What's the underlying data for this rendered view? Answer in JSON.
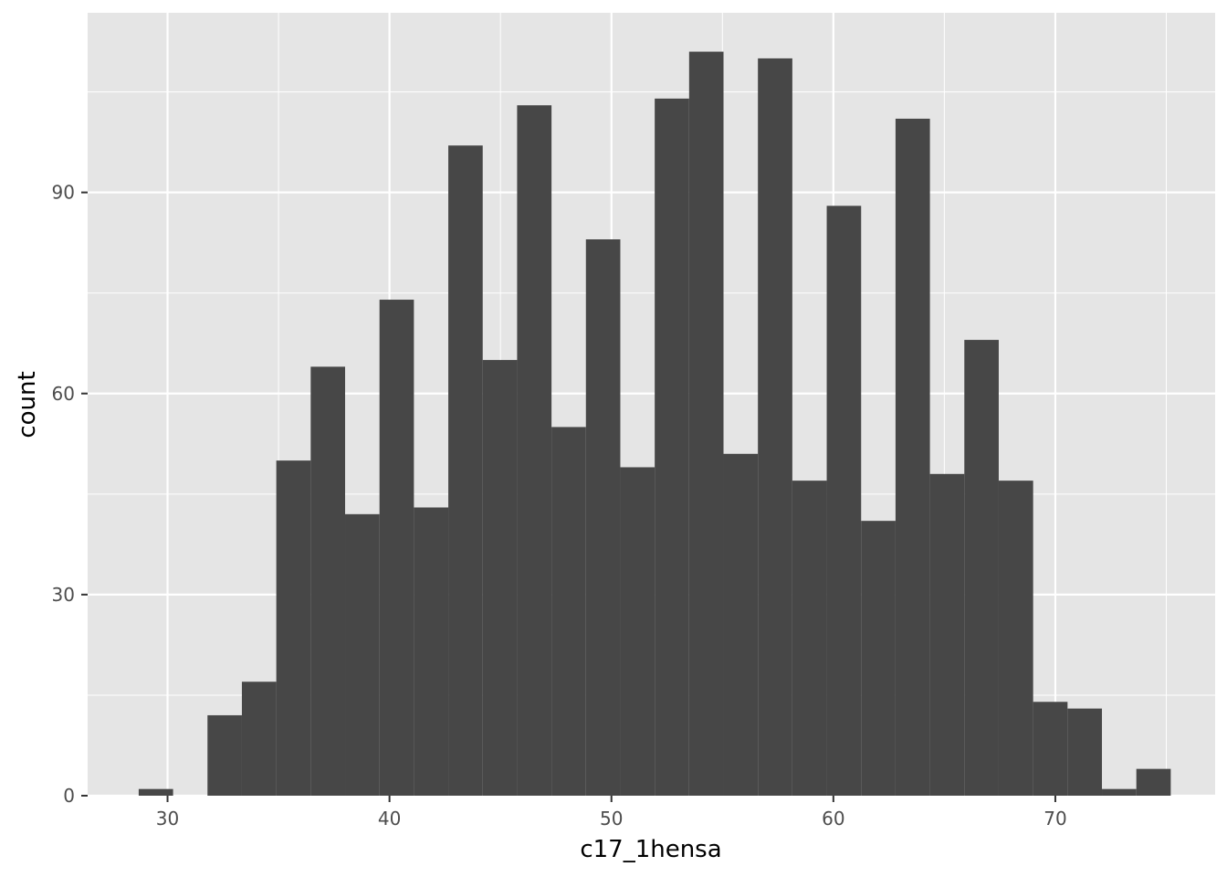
{
  "chart_data": {
    "type": "bar",
    "subtype": "histogram",
    "xlabel": "c17_1hensa",
    "ylabel": "count",
    "xlim": [
      26.4,
      77.2
    ],
    "ylim": [
      0,
      116.8
    ],
    "x_ticks": [
      30,
      40,
      50,
      60,
      70
    ],
    "x_tick_labels": [
      "30",
      "40",
      "50",
      "60",
      "70"
    ],
    "y_ticks": [
      0,
      30,
      60,
      90
    ],
    "y_tick_labels": [
      "0",
      "30",
      "60",
      "90"
    ],
    "grid": true,
    "legend": "none",
    "bin_width": 1.55,
    "bins": [
      {
        "x0": 28.7,
        "x1": 30.25,
        "count": 1
      },
      {
        "x0": 30.25,
        "x1": 31.8,
        "count": 0
      },
      {
        "x0": 31.8,
        "x1": 33.35,
        "count": 12
      },
      {
        "x0": 33.35,
        "x1": 34.9,
        "count": 17
      },
      {
        "x0": 34.9,
        "x1": 36.45,
        "count": 50
      },
      {
        "x0": 36.45,
        "x1": 38.0,
        "count": 64
      },
      {
        "x0": 38.0,
        "x1": 39.55,
        "count": 42
      },
      {
        "x0": 39.55,
        "x1": 41.1,
        "count": 74
      },
      {
        "x0": 41.1,
        "x1": 42.65,
        "count": 43
      },
      {
        "x0": 42.65,
        "x1": 44.2,
        "count": 97
      },
      {
        "x0": 44.2,
        "x1": 45.75,
        "count": 65
      },
      {
        "x0": 45.75,
        "x1": 47.3,
        "count": 103
      },
      {
        "x0": 47.3,
        "x1": 48.85,
        "count": 55
      },
      {
        "x0": 48.85,
        "x1": 50.4,
        "count": 83
      },
      {
        "x0": 50.4,
        "x1": 51.95,
        "count": 49
      },
      {
        "x0": 51.95,
        "x1": 53.5,
        "count": 104
      },
      {
        "x0": 53.5,
        "x1": 55.05,
        "count": 111
      },
      {
        "x0": 55.05,
        "x1": 56.6,
        "count": 51
      },
      {
        "x0": 56.6,
        "x1": 58.15,
        "count": 110
      },
      {
        "x0": 58.15,
        "x1": 59.7,
        "count": 47
      },
      {
        "x0": 59.7,
        "x1": 61.25,
        "count": 88
      },
      {
        "x0": 61.25,
        "x1": 62.8,
        "count": 41
      },
      {
        "x0": 62.8,
        "x1": 64.35,
        "count": 101
      },
      {
        "x0": 64.35,
        "x1": 65.9,
        "count": 48
      },
      {
        "x0": 65.9,
        "x1": 67.45,
        "count": 68
      },
      {
        "x0": 67.45,
        "x1": 69.0,
        "count": 47
      },
      {
        "x0": 69.0,
        "x1": 70.55,
        "count": 14
      },
      {
        "x0": 70.55,
        "x1": 72.1,
        "count": 13
      },
      {
        "x0": 72.1,
        "x1": 73.65,
        "count": 1
      },
      {
        "x0": 73.65,
        "x1": 75.2,
        "count": 4
      }
    ],
    "colors": {
      "panel_background": "#e5e5e5",
      "grid": "#ffffff",
      "bar_fill": "#474747",
      "tick_text": "#4d4d4d",
      "axis_title": "#000000"
    }
  }
}
